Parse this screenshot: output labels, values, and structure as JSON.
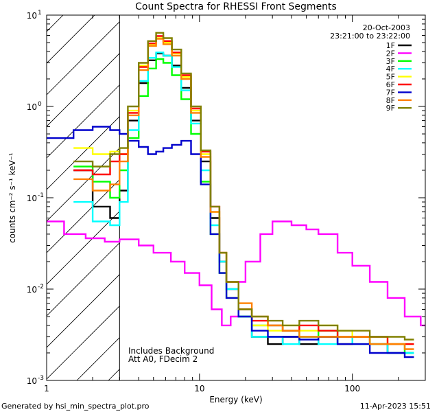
{
  "chart_data": {
    "type": "line",
    "title": "Count Spectra for RHESSI Front Segments",
    "xlabel": "Energy (keV)",
    "ylabel": "counts cm⁻² s⁻¹ keV⁻¹",
    "xscale": "log",
    "yscale": "log",
    "xlim": [
      1,
      300
    ],
    "ylim": [
      0.001,
      10
    ],
    "x_tick_labels": [
      {
        "value": 1,
        "label": "1"
      },
      {
        "value": 10,
        "label": "10"
      },
      {
        "value": 100,
        "label": "100"
      }
    ],
    "y_tick_labels": [
      {
        "value": 0.001,
        "base": "10",
        "exp": "-3"
      },
      {
        "value": 0.01,
        "base": "10",
        "exp": "-2"
      },
      {
        "value": 0.1,
        "base": "10",
        "exp": "-1"
      },
      {
        "value": 1,
        "base": "10",
        "exp": "0"
      },
      {
        "value": 10,
        "base": "10",
        "exp": "1"
      }
    ],
    "excluded_region": {
      "from": 1,
      "to": 3
    },
    "date_label": "20-Oct-2003",
    "time_label": "23:21:00 to 23:22:00",
    "annotations": [
      "Includes Background",
      "Att A0, FDecim 2"
    ],
    "series": [
      {
        "name": "1F",
        "color": "#000000",
        "x": [
          1.5,
          2.0,
          2.6,
          3.0,
          3.4,
          4.0,
          4.6,
          5.2,
          5.8,
          6.6,
          7.6,
          8.8,
          10.2,
          11.8,
          13.5,
          15,
          18,
          22,
          28,
          35,
          45,
          60,
          80,
          100,
          130,
          170,
          220
        ],
        "y": [
          0.2,
          0.08,
          0.06,
          0.12,
          0.7,
          1.8,
          3.2,
          3.8,
          3.6,
          2.8,
          1.6,
          0.7,
          0.25,
          0.06,
          0.02,
          0.01,
          0.005,
          0.003,
          0.0025,
          0.003,
          0.0025,
          0.003,
          0.0025,
          0.003,
          0.0025,
          0.002,
          0.002
        ]
      },
      {
        "name": "2F",
        "color": "#ff00ff",
        "x": [
          1.0,
          1.3,
          1.8,
          2.4,
          3.0,
          4.0,
          5.0,
          6.5,
          8.0,
          10,
          12,
          14,
          16,
          18,
          20,
          25,
          30,
          40,
          50,
          60,
          80,
          100,
          130,
          170,
          220,
          280
        ],
        "y": [
          0.055,
          0.04,
          0.036,
          0.033,
          0.035,
          0.03,
          0.025,
          0.02,
          0.015,
          0.011,
          0.006,
          0.004,
          0.005,
          0.012,
          0.02,
          0.04,
          0.055,
          0.05,
          0.045,
          0.04,
          0.025,
          0.018,
          0.012,
          0.008,
          0.005,
          0.004
        ]
      },
      {
        "name": "3F",
        "color": "#00ff00",
        "x": [
          1.5,
          2.0,
          2.6,
          3.0,
          3.4,
          4.0,
          4.6,
          5.2,
          5.8,
          6.6,
          7.6,
          8.8,
          10.2,
          11.8,
          13.5,
          15,
          18,
          22,
          28,
          35,
          45,
          60,
          80,
          100,
          130,
          170,
          220
        ],
        "y": [
          0.22,
          0.15,
          0.1,
          0.2,
          0.45,
          1.3,
          2.6,
          3.3,
          3.0,
          2.2,
          1.2,
          0.5,
          0.15,
          0.04,
          0.015,
          0.008,
          0.005,
          0.004,
          0.004,
          0.0035,
          0.003,
          0.0035,
          0.003,
          0.003,
          0.0025,
          0.0025,
          0.002
        ]
      },
      {
        "name": "4F",
        "color": "#00ffff",
        "x": [
          1.5,
          2.0,
          2.6,
          3.0,
          3.4,
          4.0,
          4.6,
          5.2,
          5.8,
          6.6,
          7.6,
          8.8,
          10.2,
          11.8,
          13.5,
          15,
          18,
          22,
          28,
          35,
          45,
          60,
          80,
          100,
          130,
          170,
          220
        ],
        "y": [
          0.09,
          0.055,
          0.05,
          0.09,
          0.55,
          1.9,
          3.4,
          3.9,
          3.6,
          2.7,
          1.5,
          0.65,
          0.2,
          0.05,
          0.02,
          0.01,
          0.005,
          0.003,
          0.003,
          0.0025,
          0.003,
          0.0025,
          0.003,
          0.0025,
          0.0025,
          0.002,
          0.002
        ]
      },
      {
        "name": "5F",
        "color": "#ffff00",
        "x": [
          1.5,
          2.0,
          2.6,
          3.0,
          3.4,
          4.0,
          4.6,
          5.2,
          5.8,
          6.6,
          7.6,
          8.8,
          10.2,
          11.8,
          13.5,
          15,
          18,
          22,
          28,
          35,
          45,
          60,
          80,
          100,
          130,
          170,
          220
        ],
        "y": [
          0.35,
          0.3,
          0.32,
          0.3,
          0.9,
          2.8,
          4.8,
          5.6,
          5.0,
          3.8,
          2.1,
          0.9,
          0.3,
          0.07,
          0.025,
          0.012,
          0.006,
          0.004,
          0.0035,
          0.004,
          0.0035,
          0.004,
          0.0035,
          0.003,
          0.003,
          0.0025,
          0.0025
        ]
      },
      {
        "name": "6F",
        "color": "#ff0000",
        "x": [
          1.5,
          2.0,
          2.6,
          3.0,
          3.4,
          4.0,
          4.6,
          5.2,
          5.8,
          6.6,
          7.6,
          8.8,
          10.2,
          11.8,
          13.5,
          15,
          18,
          22,
          28,
          35,
          45,
          60,
          80,
          100,
          130,
          170,
          220
        ],
        "y": [
          0.2,
          0.18,
          0.25,
          0.3,
          0.85,
          2.7,
          4.9,
          5.9,
          5.2,
          3.9,
          2.2,
          0.95,
          0.32,
          0.08,
          0.025,
          0.012,
          0.006,
          0.0045,
          0.004,
          0.0035,
          0.004,
          0.0035,
          0.003,
          0.003,
          0.003,
          0.0025,
          0.0025
        ]
      },
      {
        "name": "7F",
        "color": "#0000cc",
        "x": [
          1.0,
          1.5,
          2.0,
          2.6,
          3.0,
          3.4,
          4.0,
          4.6,
          5.2,
          5.8,
          6.6,
          7.6,
          8.8,
          10.2,
          11.8,
          13.5,
          15,
          18,
          22,
          28,
          35,
          45,
          60,
          80,
          100,
          130,
          170,
          220
        ],
        "y": [
          0.45,
          0.55,
          0.6,
          0.55,
          0.5,
          0.42,
          0.36,
          0.3,
          0.32,
          0.35,
          0.38,
          0.42,
          0.3,
          0.14,
          0.04,
          0.015,
          0.008,
          0.005,
          0.0035,
          0.003,
          0.003,
          0.0028,
          0.003,
          0.0025,
          0.0025,
          0.002,
          0.002,
          0.0018
        ]
      },
      {
        "name": "8F",
        "color": "#ff8000",
        "x": [
          1.5,
          2.0,
          2.6,
          3.0,
          3.4,
          4.0,
          4.6,
          5.2,
          5.8,
          6.6,
          7.6,
          8.8,
          10.2,
          11.8,
          13.5,
          15,
          18,
          22,
          28,
          35,
          45,
          60,
          80,
          100,
          130,
          170,
          220
        ],
        "y": [
          0.16,
          0.12,
          0.14,
          0.25,
          0.8,
          2.5,
          4.6,
          5.5,
          4.8,
          3.6,
          2.0,
          0.85,
          0.28,
          0.07,
          0.025,
          0.012,
          0.007,
          0.005,
          0.004,
          0.0035,
          0.003,
          0.003,
          0.003,
          0.003,
          0.0025,
          0.0025,
          0.0022
        ]
      },
      {
        "name": "9F",
        "color": "#808000",
        "x": [
          1.5,
          2.0,
          2.6,
          3.0,
          3.4,
          4.0,
          4.6,
          5.2,
          5.8,
          6.6,
          7.6,
          8.8,
          10.2,
          11.8,
          13.5,
          15,
          18,
          22,
          28,
          35,
          45,
          60,
          80,
          100,
          130,
          170,
          220
        ],
        "y": [
          0.25,
          0.22,
          0.3,
          0.35,
          1.0,
          3.0,
          5.2,
          6.4,
          5.6,
          4.2,
          2.3,
          1.0,
          0.33,
          0.08,
          0.025,
          0.012,
          0.006,
          0.005,
          0.0045,
          0.004,
          0.0045,
          0.004,
          0.0035,
          0.0035,
          0.003,
          0.003,
          0.0028
        ]
      }
    ]
  },
  "footer": {
    "left": "Generated by hsi_min_spectra_plot.pro",
    "right": "11-Apr-2023 15:51"
  }
}
